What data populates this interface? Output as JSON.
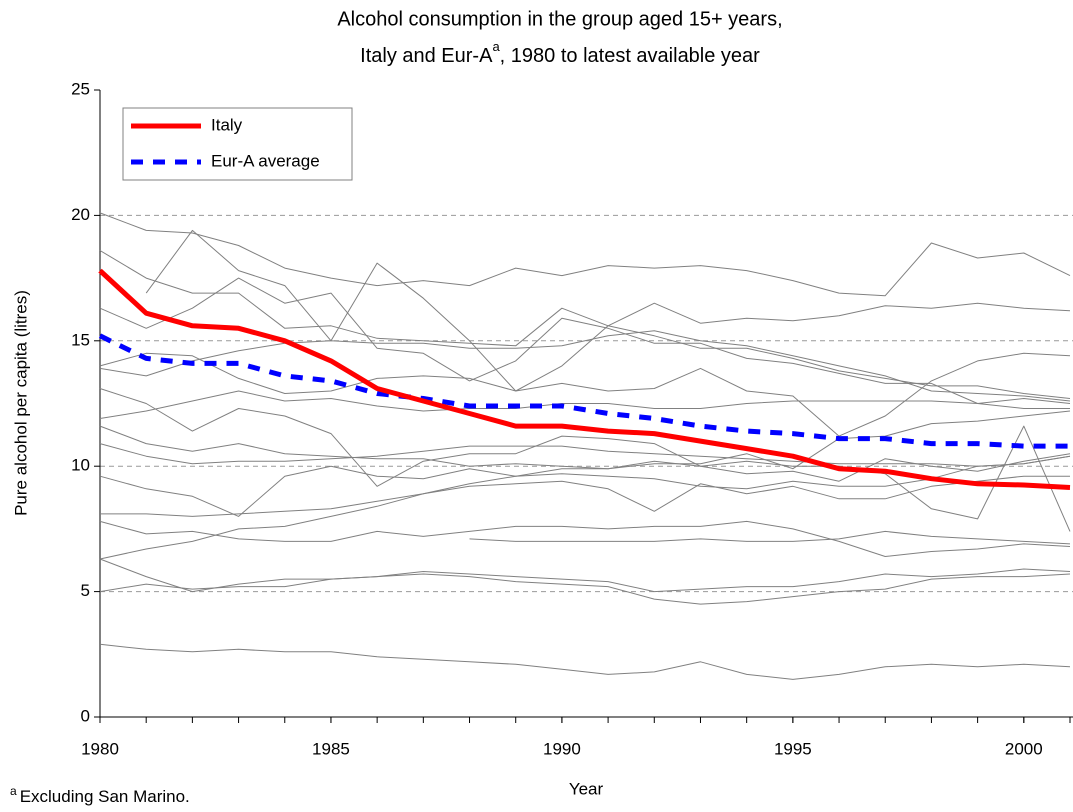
{
  "chart_data": {
    "type": "line",
    "title": [
      "Alcohol consumption in the group aged 15+ years,",
      "Italy and Eur-A",
      "a",
      ", 1980 to latest available year"
    ],
    "x_label": "Year",
    "y_label": "Pure alcohol per capita (litres)",
    "footnote": [
      "a",
      "Excluding San Marino."
    ],
    "x": [
      1980,
      1981,
      1982,
      1983,
      1984,
      1985,
      1986,
      1987,
      1988,
      1989,
      1990,
      1991,
      1992,
      1993,
      1994,
      1995,
      1996,
      1997,
      1998,
      1999,
      2000,
      2001
    ],
    "xlim": [
      1980,
      2001
    ],
    "xticks": [
      1980,
      1985,
      1990,
      1995,
      2000
    ],
    "ylim": [
      0,
      25
    ],
    "yticks": [
      0,
      5,
      10,
      15,
      20,
      25
    ],
    "grid": true,
    "legend": "top-left",
    "series": [
      {
        "color": "#808080",
        "values": [
          20.1,
          19.4,
          19.3,
          18.8,
          17.9,
          17.5,
          17.2,
          17.4,
          17.2,
          17.9,
          17.6,
          18.0,
          17.9,
          18.0,
          17.8,
          17.4,
          16.9,
          16.8,
          18.9,
          18.3,
          18.5,
          17.6
        ]
      },
      {
        "color": "#808080",
        "values": [
          18.6,
          17.5,
          16.9,
          16.9,
          15.5,
          15.6,
          15.1,
          15.0,
          14.9,
          14.8,
          16.3,
          15.6,
          16.5,
          15.7,
          15.9,
          15.8,
          16.0,
          16.4,
          16.3,
          16.5,
          16.3,
          16.2
        ]
      },
      {
        "color": "#808080",
        "values": [
          null,
          16.9,
          19.4,
          17.8,
          17.2,
          15.0,
          18.1,
          16.7,
          15.0,
          13.0,
          14.0,
          15.6,
          15.2,
          14.7,
          14.7,
          14.3,
          13.8,
          13.5,
          13.2,
          13.2,
          12.9,
          12.7
        ]
      },
      {
        "color": "#808080",
        "values": [
          16.3,
          15.5,
          16.3,
          17.5,
          16.5,
          16.9,
          14.7,
          14.5,
          13.4,
          14.2,
          15.9,
          15.5,
          14.9,
          14.9,
          14.3,
          14.1,
          13.7,
          13.3,
          13.3,
          12.5,
          12.7,
          12.5
        ]
      },
      {
        "color": "#808080",
        "values": [
          14.0,
          14.5,
          14.4,
          13.5,
          12.9,
          13.0,
          13.5,
          13.6,
          13.5,
          13.0,
          13.3,
          13.0,
          13.1,
          13.9,
          13.0,
          12.8,
          11.2,
          12.0,
          13.4,
          14.2,
          14.5,
          14.4
        ]
      },
      {
        "color": "#808080",
        "values": [
          13.9,
          13.6,
          14.2,
          14.6,
          14.9,
          15.0,
          14.9,
          14.9,
          14.7,
          14.7,
          14.8,
          15.2,
          15.4,
          15.0,
          14.8,
          14.4,
          14.0,
          13.6,
          13.0,
          12.9,
          12.8,
          12.6
        ]
      },
      {
        "color": "#808080",
        "values": [
          13.1,
          12.5,
          11.4,
          12.3,
          12.0,
          11.3,
          9.2,
          10.2,
          10.5,
          10.5,
          11.2,
          11.1,
          10.9,
          10.0,
          10.2,
          10.0,
          10.0,
          9.7,
          8.3,
          7.9,
          11.6,
          7.4
        ]
      },
      {
        "color": "#808080",
        "values": [
          11.9,
          12.2,
          12.6,
          13.0,
          12.6,
          12.7,
          12.4,
          12.2,
          12.3,
          12.3,
          12.5,
          12.5,
          12.3,
          12.3,
          12.5,
          12.6,
          12.6,
          12.6,
          12.6,
          12.5,
          12.3,
          12.3
        ]
      },
      {
        "color": "#808080",
        "values": [
          11.6,
          10.9,
          10.6,
          10.9,
          10.5,
          10.4,
          10.3,
          10.3,
          10.0,
          10.1,
          10.0,
          9.9,
          10.1,
          10.1,
          10.5,
          9.9,
          11.1,
          11.2,
          11.7,
          11.8,
          12.0,
          12.2
        ]
      },
      {
        "color": "#808080",
        "values": [
          10.9,
          10.4,
          10.1,
          10.2,
          10.2,
          10.3,
          10.4,
          10.6,
          10.8,
          10.8,
          10.8,
          10.6,
          10.5,
          10.4,
          10.3,
          10.2,
          10.1,
          10.1,
          10.1,
          10.0,
          10.1,
          10.4
        ]
      },
      {
        "color": "#808080",
        "values": [
          9.6,
          9.1,
          8.8,
          8.0,
          9.6,
          10.0,
          9.6,
          9.5,
          9.9,
          9.6,
          9.9,
          9.9,
          10.2,
          10.0,
          9.7,
          9.8,
          9.4,
          10.3,
          10.0,
          9.8,
          10.2,
          10.5
        ]
      },
      {
        "color": "#808080",
        "values": [
          8.1,
          8.1,
          8.0,
          8.1,
          8.2,
          8.3,
          8.6,
          8.9,
          9.3,
          9.6,
          9.7,
          9.6,
          9.5,
          9.2,
          9.1,
          9.4,
          9.2,
          9.2,
          9.5,
          10.0,
          10.1,
          10.4
        ]
      },
      {
        "color": "#808080",
        "values": [
          7.8,
          7.3,
          7.4,
          7.1,
          7.0,
          7.0,
          7.4,
          7.2,
          7.4,
          7.6,
          7.6,
          7.5,
          7.6,
          7.6,
          7.8,
          7.5,
          7.0,
          6.4,
          6.6,
          6.7,
          6.9,
          6.8
        ]
      },
      {
        "color": "#808080",
        "values": [
          6.3,
          6.7,
          7.0,
          7.5,
          7.6,
          8.0,
          8.4,
          8.9,
          9.2,
          9.3,
          9.4,
          9.1,
          8.2,
          9.3,
          8.9,
          9.2,
          8.7,
          8.7,
          9.2,
          9.4,
          9.6,
          9.6
        ]
      },
      {
        "color": "#808080",
        "values": [
          null,
          null,
          null,
          null,
          null,
          null,
          null,
          null,
          7.1,
          7.0,
          7.0,
          7.0,
          7.0,
          7.1,
          7.0,
          7.0,
          7.1,
          7.4,
          7.2,
          7.1,
          7.0,
          6.9
        ]
      },
      {
        "color": "#808080",
        "values": [
          6.3,
          5.6,
          5.0,
          5.3,
          5.5,
          5.5,
          5.6,
          5.7,
          5.6,
          5.4,
          5.3,
          5.2,
          4.7,
          4.5,
          4.6,
          4.8,
          5.0,
          5.1,
          5.5,
          5.6,
          5.6,
          5.7
        ]
      },
      {
        "color": "#808080",
        "values": [
          5.0,
          5.3,
          5.1,
          5.2,
          5.2,
          5.5,
          5.6,
          5.8,
          5.7,
          5.6,
          5.5,
          5.4,
          5.0,
          5.1,
          5.2,
          5.2,
          5.4,
          5.7,
          5.6,
          5.7,
          5.9,
          5.8
        ]
      },
      {
        "color": "#808080",
        "values": [
          2.9,
          2.7,
          2.6,
          2.7,
          2.6,
          2.6,
          2.4,
          2.3,
          2.2,
          2.1,
          1.9,
          1.7,
          1.8,
          2.2,
          1.7,
          1.5,
          1.7,
          2.0,
          2.1,
          2.0,
          2.1,
          2.0
        ]
      },
      {
        "name": "Eur-A average",
        "color": "#0000ff",
        "style": "dashed",
        "width": 5,
        "values": [
          15.2,
          14.3,
          14.1,
          14.1,
          13.6,
          13.4,
          12.9,
          12.7,
          12.4,
          12.4,
          12.4,
          12.1,
          11.9,
          11.6,
          11.4,
          11.3,
          11.1,
          11.1,
          10.9,
          10.9,
          10.8,
          10.8
        ]
      },
      {
        "name": "Italy",
        "color": "#ff0000",
        "style": "solid",
        "width": 5,
        "values": [
          17.8,
          16.1,
          15.6,
          15.5,
          15.0,
          14.2,
          13.1,
          12.6,
          12.1,
          11.6,
          11.6,
          11.4,
          11.3,
          11.0,
          10.7,
          10.4,
          9.9,
          9.8,
          9.5,
          9.3,
          9.25,
          9.15
        ]
      }
    ]
  }
}
